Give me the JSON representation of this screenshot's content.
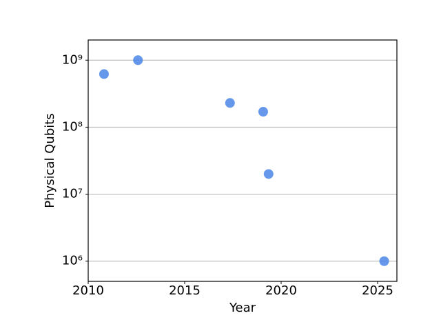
{
  "chart_data": {
    "type": "scatter",
    "xlabel": "Year",
    "ylabel": "Physical Qubits",
    "x": [
      2010.82,
      2012.58,
      2017.35,
      2019.07,
      2019.35,
      2025.34
    ],
    "values": [
      620000000,
      1000000000,
      230000000,
      170000000,
      20000000,
      1000000
    ],
    "color": "#4a86e8",
    "xlim": [
      2010,
      2026
    ],
    "xticks": [
      2010,
      2015,
      2020,
      2025
    ],
    "ylim": [
      500000,
      2000000000
    ],
    "yticks": [
      {
        "value": 1000000,
        "label": "10⁶"
      },
      {
        "value": 10000000,
        "label": "10⁷"
      },
      {
        "value": 100000000,
        "label": "10⁸"
      },
      {
        "value": 1000000000,
        "label": "10⁹"
      }
    ],
    "yscale": "log",
    "grid": true
  }
}
